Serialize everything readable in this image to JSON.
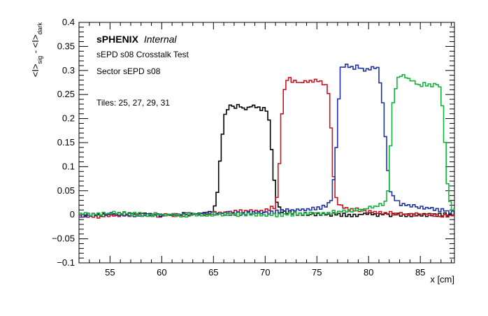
{
  "chart_data": {
    "type": "line",
    "style": "step-histogram",
    "annotations": {
      "experiment": "sPHENIX",
      "status": "Internal",
      "line1": "sEPD s08 Crosstalk Test",
      "line2": "Sector sEPD s08",
      "line3": "Tiles: 25, 27, 29, 31"
    },
    "xlabel": "x [cm]",
    "ylabel": {
      "p1": "<I>",
      "s1": "sig",
      "p2": " - <I>",
      "s2": "dark"
    },
    "xlim": [
      52,
      88.3
    ],
    "ylim": [
      -0.1,
      0.4
    ],
    "x_ticks": [
      "55",
      "60",
      "65",
      "70",
      "75",
      "80",
      "85"
    ],
    "y_ticks": [
      "0.4",
      "0.35",
      "0.3",
      "0.25",
      "0.2",
      "0.15",
      "0.1",
      "0.05",
      "0",
      "−0.05",
      "−0.1"
    ],
    "bin_width": 0.25,
    "series": [
      {
        "color": "#000000",
        "values": [
          [
            52,
            0.002
          ],
          [
            53,
            0.002
          ],
          [
            54,
            0.001
          ],
          [
            55,
            0.002
          ],
          [
            56,
            0.004
          ],
          [
            57,
            0.003
          ],
          [
            58,
            0.002
          ],
          [
            59,
            0.003
          ],
          [
            60,
            0.002
          ],
          [
            61,
            0.001
          ],
          [
            62,
            0.003
          ],
          [
            63,
            0.004
          ],
          [
            64,
            0.006
          ],
          [
            64.5,
            0.007
          ],
          [
            65,
            0.01
          ],
          [
            65.25,
            0.03
          ],
          [
            65.5,
            0.07
          ],
          [
            65.75,
            0.15
          ],
          [
            66,
            0.195
          ],
          [
            66.25,
            0.222
          ],
          [
            66.5,
            0.224
          ],
          [
            66.75,
            0.23
          ],
          [
            67,
            0.226
          ],
          [
            67.5,
            0.228
          ],
          [
            68,
            0.222
          ],
          [
            68.5,
            0.226
          ],
          [
            69,
            0.23
          ],
          [
            69.5,
            0.22
          ],
          [
            70,
            0.225
          ],
          [
            70.25,
            0.215
          ],
          [
            70.5,
            0.18
          ],
          [
            70.75,
            0.1
          ],
          [
            71,
            0.04
          ],
          [
            71.25,
            0.02
          ],
          [
            71.5,
            0.01
          ],
          [
            72,
            0.008
          ],
          [
            73,
            0.005
          ],
          [
            74,
            0.004
          ],
          [
            75,
            0.003
          ],
          [
            76,
            0.003
          ],
          [
            77,
            0.002
          ],
          [
            78,
            0.002
          ],
          [
            80,
            0.003
          ],
          [
            82,
            0.002
          ],
          [
            84,
            0.002
          ],
          [
            86,
            0.002
          ],
          [
            88,
            0.002
          ]
        ]
      },
      {
        "color": "#c8141e",
        "values": [
          [
            52,
            0.0
          ],
          [
            53,
            -0.002
          ],
          [
            54,
            -0.001
          ],
          [
            55,
            0.001
          ],
          [
            56,
            0.0
          ],
          [
            57,
            0.002
          ],
          [
            58,
            0.001
          ],
          [
            59,
            -0.001
          ],
          [
            60,
            0.002
          ],
          [
            61,
            0.002
          ],
          [
            62,
            0.002
          ],
          [
            63,
            0.003
          ],
          [
            64,
            0.004
          ],
          [
            65,
            0.005
          ],
          [
            66,
            0.006
          ],
          [
            66.5,
            0.008
          ],
          [
            67,
            0.009
          ],
          [
            68,
            0.008
          ],
          [
            69,
            0.009
          ],
          [
            70,
            0.012
          ],
          [
            70.5,
            0.015
          ],
          [
            71,
            0.02
          ],
          [
            71.25,
            0.05
          ],
          [
            71.5,
            0.17
          ],
          [
            71.75,
            0.25
          ],
          [
            72,
            0.275
          ],
          [
            72.25,
            0.292
          ],
          [
            72.5,
            0.278
          ],
          [
            73,
            0.28
          ],
          [
            73.5,
            0.276
          ],
          [
            74,
            0.282
          ],
          [
            74.5,
            0.278
          ],
          [
            75,
            0.285
          ],
          [
            75.5,
            0.276
          ],
          [
            76,
            0.27
          ],
          [
            76.25,
            0.24
          ],
          [
            76.5,
            0.12
          ],
          [
            76.75,
            0.05
          ],
          [
            77,
            0.025
          ],
          [
            77.5,
            0.017
          ],
          [
            78,
            0.013
          ],
          [
            79,
            0.012
          ],
          [
            80,
            0.009
          ],
          [
            81,
            0.007
          ],
          [
            82,
            0.006
          ],
          [
            83,
            0.004
          ],
          [
            84,
            0.003
          ],
          [
            85,
            0.003
          ],
          [
            86,
            0.002
          ],
          [
            87,
            0.001
          ],
          [
            88,
            0.0
          ]
        ]
      },
      {
        "color": "#1e32a0",
        "values": [
          [
            52,
            0.001
          ],
          [
            53,
            0.001
          ],
          [
            54,
            0.002
          ],
          [
            55,
            0.003
          ],
          [
            56,
            0.002
          ],
          [
            57,
            0.001
          ],
          [
            58,
            0.002
          ],
          [
            59,
            0.002
          ],
          [
            60,
            0.001
          ],
          [
            61,
            0.002
          ],
          [
            62,
            0.003
          ],
          [
            63,
            0.003
          ],
          [
            64,
            0.004
          ],
          [
            65,
            0.005
          ],
          [
            66,
            0.005
          ],
          [
            67,
            0.004
          ],
          [
            68,
            0.005
          ],
          [
            69,
            0.006
          ],
          [
            70,
            0.006
          ],
          [
            71,
            0.008
          ],
          [
            72,
            0.01
          ],
          [
            73,
            0.012
          ],
          [
            74,
            0.013
          ],
          [
            75,
            0.014
          ],
          [
            76,
            0.02
          ],
          [
            76.5,
            0.04
          ],
          [
            77,
            0.18
          ],
          [
            77.25,
            0.3
          ],
          [
            77.5,
            0.31
          ],
          [
            78,
            0.312
          ],
          [
            78.5,
            0.306
          ],
          [
            79,
            0.31
          ],
          [
            79.5,
            0.302
          ],
          [
            80,
            0.306
          ],
          [
            80.5,
            0.31
          ],
          [
            81,
            0.304
          ],
          [
            81.25,
            0.255
          ],
          [
            81.5,
            0.21
          ],
          [
            81.75,
            0.12
          ],
          [
            82,
            0.06
          ],
          [
            82.5,
            0.035
          ],
          [
            83,
            0.025
          ],
          [
            84,
            0.02
          ],
          [
            85,
            0.018
          ],
          [
            86,
            0.016
          ],
          [
            87,
            0.012
          ],
          [
            88,
            0.008
          ]
        ]
      },
      {
        "color": "#14b43c",
        "values": [
          [
            52,
            0.004
          ],
          [
            53,
            0.003
          ],
          [
            54,
            0.003
          ],
          [
            55,
            0.005
          ],
          [
            56,
            0.006
          ],
          [
            57,
            0.004
          ],
          [
            58,
            0.003
          ],
          [
            59,
            0.002
          ],
          [
            60,
            0.004
          ],
          [
            61,
            0.002
          ],
          [
            62,
            0.001
          ],
          [
            63,
            0.002
          ],
          [
            64,
            0.002
          ],
          [
            65,
            0.003
          ],
          [
            66,
            0.003
          ],
          [
            67,
            0.002
          ],
          [
            68,
            0.002
          ],
          [
            69,
            0.003
          ],
          [
            70,
            0.002
          ],
          [
            71,
            0.002
          ],
          [
            72,
            0.003
          ],
          [
            73,
            0.004
          ],
          [
            74,
            0.005
          ],
          [
            75,
            0.005
          ],
          [
            76,
            0.006
          ],
          [
            77,
            0.008
          ],
          [
            78,
            0.01
          ],
          [
            79,
            0.012
          ],
          [
            80,
            0.015
          ],
          [
            81,
            0.02
          ],
          [
            81.75,
            0.03
          ],
          [
            82,
            0.08
          ],
          [
            82.25,
            0.21
          ],
          [
            82.5,
            0.26
          ],
          [
            83,
            0.292
          ],
          [
            83.5,
            0.29
          ],
          [
            84,
            0.283
          ],
          [
            84.5,
            0.276
          ],
          [
            85,
            0.27
          ],
          [
            85.5,
            0.275
          ],
          [
            86,
            0.27
          ],
          [
            86.5,
            0.275
          ],
          [
            87,
            0.265
          ],
          [
            87.25,
            0.2
          ],
          [
            87.5,
            0.1
          ],
          [
            87.75,
            0.04
          ],
          [
            88,
            0.015
          ]
        ]
      }
    ]
  }
}
